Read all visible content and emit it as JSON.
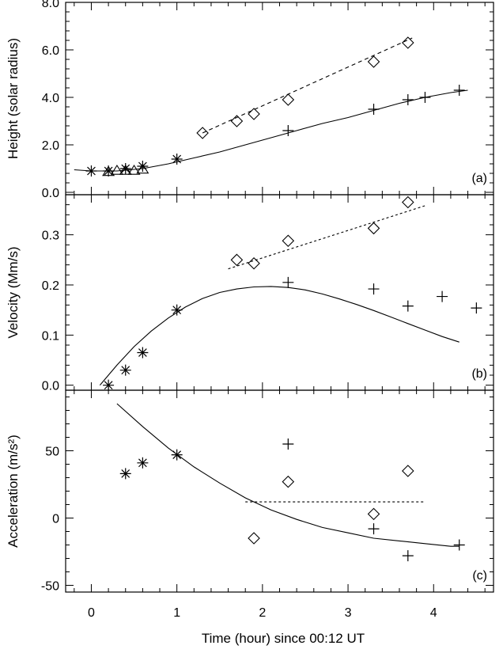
{
  "chart_data": {
    "type": "scatter",
    "xlabel": "Time (hour) since 00:12 UT",
    "xlim": [
      -0.3,
      4.7
    ],
    "xticks": [
      0,
      1,
      2,
      3,
      4
    ],
    "x_minor_step": 0.2,
    "panels": [
      {
        "label": "(a)",
        "ylabel": "Height (solar radius)",
        "ylim": [
          -0.1,
          8.0
        ],
        "yticks": [
          0.0,
          2.0,
          4.0,
          6.0,
          8.0
        ],
        "ytick_labels": [
          "0.0",
          "2.0",
          "4.0",
          "6.0",
          "8.0"
        ],
        "y_minor_step": 0.4,
        "series": [
          {
            "marker": "asterisk",
            "x": [
              0.0,
              0.2,
              0.4,
              0.6,
              1.0
            ],
            "y": [
              0.9,
              0.9,
              1.0,
              1.1,
              1.4
            ]
          },
          {
            "marker": "triangle",
            "x": [
              0.2,
              0.3,
              0.4,
              0.5,
              0.6
            ],
            "y": [
              0.85,
              0.9,
              0.9,
              0.9,
              0.95
            ]
          },
          {
            "marker": "diamond",
            "x": [
              1.3,
              1.7,
              1.9,
              2.3,
              3.3,
              3.7
            ],
            "y": [
              2.5,
              3.0,
              3.3,
              3.9,
              5.5,
              6.3
            ]
          },
          {
            "marker": "plus",
            "x": [
              2.3,
              3.3,
              3.7,
              3.9,
              4.3
            ],
            "y": [
              2.6,
              3.5,
              3.9,
              4.0,
              4.3
            ]
          }
        ],
        "fits": [
          {
            "style": "solid",
            "x": [
              -0.2,
              0.0,
              0.3,
              0.6,
              0.9,
              1.2,
              1.5,
              1.8,
              2.1,
              2.4,
              2.7,
              3.0,
              3.3,
              3.6,
              3.9,
              4.2,
              4.4
            ],
            "y": [
              0.95,
              0.9,
              0.9,
              1.0,
              1.2,
              1.45,
              1.7,
              2.0,
              2.3,
              2.6,
              2.9,
              3.15,
              3.45,
              3.75,
              4.0,
              4.2,
              4.3
            ]
          },
          {
            "style": "dashed",
            "x": [
              1.3,
              3.75
            ],
            "y": [
              2.5,
              6.5
            ]
          }
        ]
      },
      {
        "label": "(b)",
        "ylabel": "Velocity (Mm/s)",
        "ylim": [
          -0.01,
          0.38
        ],
        "yticks": [
          0.0,
          0.1,
          0.2,
          0.3
        ],
        "ytick_labels": [
          "0.0",
          "0.1",
          "0.2",
          "0.3"
        ],
        "y_minor_step": 0.02,
        "series": [
          {
            "marker": "asterisk",
            "x": [
              0.2,
              0.4,
              0.6,
              1.0
            ],
            "y": [
              0.0,
              0.03,
              0.065,
              0.15
            ]
          },
          {
            "marker": "diamond",
            "x": [
              1.7,
              1.9,
              2.3,
              3.3,
              3.7
            ],
            "y": [
              0.25,
              0.243,
              0.288,
              0.313,
              0.365
            ]
          },
          {
            "marker": "plus",
            "x": [
              2.3,
              3.3,
              3.7,
              4.1,
              4.5
            ],
            "y": [
              0.205,
              0.192,
              0.158,
              0.177,
              0.154
            ]
          }
        ],
        "fits": [
          {
            "style": "solid",
            "x": [
              0.1,
              0.3,
              0.5,
              0.7,
              0.9,
              1.1,
              1.3,
              1.5,
              1.7,
              1.9,
              2.1,
              2.3,
              2.5,
              2.7,
              2.9,
              3.1,
              3.3,
              3.5,
              3.7,
              3.9,
              4.1,
              4.3
            ],
            "y": [
              0.0,
              0.04,
              0.077,
              0.108,
              0.134,
              0.156,
              0.173,
              0.185,
              0.192,
              0.196,
              0.197,
              0.195,
              0.19,
              0.182,
              0.172,
              0.161,
              0.149,
              0.136,
              0.123,
              0.11,
              0.097,
              0.086
            ]
          },
          {
            "style": "dotted",
            "x": [
              1.6,
              3.9
            ],
            "y": [
              0.232,
              0.358
            ]
          }
        ]
      },
      {
        "label": "(c)",
        "ylabel": "Acceleration (m/s²)",
        "ylim": [
          -55,
          95
        ],
        "yticks": [
          -50,
          0,
          50
        ],
        "ytick_labels": [
          "-50",
          "0",
          "50"
        ],
        "y_minor_step": 10,
        "series": [
          {
            "marker": "asterisk",
            "x": [
              0.4,
              0.6,
              1.0
            ],
            "y": [
              33,
              41,
              47
            ]
          },
          {
            "marker": "diamond",
            "x": [
              1.9,
              2.3,
              3.3,
              3.7
            ],
            "y": [
              -15,
              27,
              3,
              35
            ]
          },
          {
            "marker": "plus",
            "x": [
              2.3,
              3.3,
              3.7,
              4.3
            ],
            "y": [
              55,
              -8,
              -28,
              -20
            ]
          }
        ],
        "fits": [
          {
            "style": "solid",
            "x": [
              0.3,
              0.6,
              0.9,
              1.2,
              1.5,
              1.8,
              2.1,
              2.4,
              2.7,
              3.0,
              3.3,
              3.6,
              3.9,
              4.2,
              4.3
            ],
            "y": [
              85,
              68,
              52,
              38,
              26,
              15,
              6,
              -1,
              -7,
              -11,
              -15,
              -17,
              -19,
              -21,
              -21
            ]
          },
          {
            "style": "dotted",
            "x": [
              1.8,
              3.9
            ],
            "y": [
              12,
              12
            ]
          }
        ]
      }
    ]
  }
}
